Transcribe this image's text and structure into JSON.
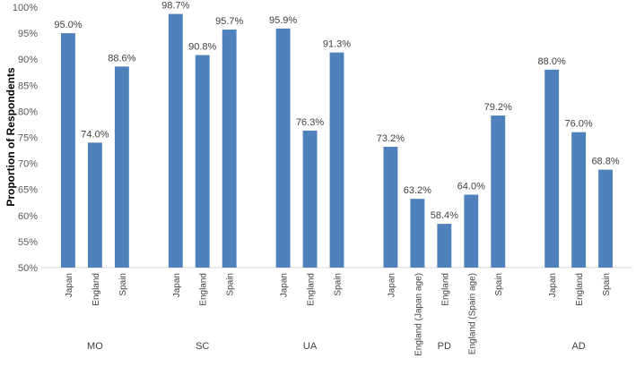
{
  "chart_data": {
    "type": "bar",
    "ylabel": "Proportion of Respondents",
    "ylim": [
      50,
      100
    ],
    "yticks": [
      "50%",
      "55%",
      "60%",
      "65%",
      "70%",
      "75%",
      "80%",
      "85%",
      "90%",
      "95%",
      "100%"
    ],
    "grid": false,
    "bar_color": "#4F81BD",
    "groups": [
      {
        "name": "MO",
        "bars": [
          {
            "category": "Japan",
            "value": 95.0,
            "label": "95.0%"
          },
          {
            "category": "England",
            "value": 74.0,
            "label": "74.0%"
          },
          {
            "category": "Spain",
            "value": 88.6,
            "label": "88.6%"
          }
        ]
      },
      {
        "name": "SC",
        "bars": [
          {
            "category": "Japan",
            "value": 98.7,
            "label": "98.7%"
          },
          {
            "category": "England",
            "value": 90.8,
            "label": "90.8%"
          },
          {
            "category": "Spain",
            "value": 95.7,
            "label": "95.7%"
          }
        ]
      },
      {
        "name": "UA",
        "bars": [
          {
            "category": "Japan",
            "value": 95.9,
            "label": "95.9%"
          },
          {
            "category": "England",
            "value": 76.3,
            "label": "76.3%"
          },
          {
            "category": "Spain",
            "value": 91.3,
            "label": "91.3%"
          }
        ]
      },
      {
        "name": "PD",
        "bars": [
          {
            "category": "Japan",
            "value": 73.2,
            "label": "73.2%"
          },
          {
            "category": "England (Japan age)",
            "value": 63.2,
            "label": "63.2%"
          },
          {
            "category": "England",
            "value": 58.4,
            "label": "58.4%"
          },
          {
            "category": "England (Spain age)",
            "value": 64.0,
            "label": "64.0%"
          },
          {
            "category": "Spain",
            "value": 79.2,
            "label": "79.2%"
          }
        ]
      },
      {
        "name": "AD",
        "bars": [
          {
            "category": "Japan",
            "value": 88.0,
            "label": "88.0%"
          },
          {
            "category": "England",
            "value": 76.0,
            "label": "76.0%"
          },
          {
            "category": "Spain",
            "value": 68.8,
            "label": "68.8%"
          }
        ]
      }
    ]
  }
}
